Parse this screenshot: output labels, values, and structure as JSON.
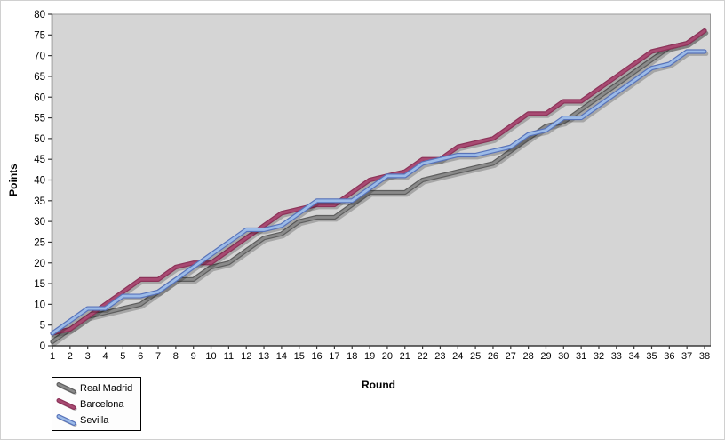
{
  "chart_data": {
    "type": "line",
    "title": "",
    "xlabel": "Round",
    "ylabel": "Points",
    "x": [
      1,
      2,
      3,
      4,
      5,
      6,
      7,
      8,
      9,
      10,
      11,
      12,
      13,
      14,
      15,
      16,
      17,
      18,
      19,
      20,
      21,
      22,
      23,
      24,
      25,
      26,
      27,
      28,
      29,
      30,
      31,
      32,
      33,
      34,
      35,
      36,
      37,
      38
    ],
    "ylim": [
      0,
      80
    ],
    "ytick_step": 5,
    "yticks": [
      0,
      5,
      10,
      15,
      20,
      25,
      30,
      35,
      40,
      45,
      50,
      55,
      60,
      65,
      70,
      75,
      80
    ],
    "grid": false,
    "plot_bg": "#d5d5d5",
    "plot_border": "#9a9a9a",
    "axis_color": "#3a3a3a",
    "legend_position": "bottom-left",
    "series": [
      {
        "name": "Real Madrid",
        "color": "#8a8a8a",
        "edge_color": "#5e5e5e",
        "values": [
          1,
          4,
          7,
          8,
          9,
          10,
          13,
          16,
          16,
          19,
          20,
          23,
          26,
          27,
          30,
          31,
          31,
          34,
          37,
          37,
          37,
          40,
          41,
          42,
          43,
          44,
          47,
          50,
          53,
          54,
          57,
          60,
          63,
          66,
          69,
          72,
          73,
          76
        ]
      },
      {
        "name": "Barcelona",
        "color": "#a84a72",
        "edge_color": "#8c3359",
        "values": [
          3,
          4,
          7,
          10,
          13,
          16,
          16,
          19,
          20,
          20,
          23,
          26,
          29,
          32,
          33,
          34,
          34,
          37,
          40,
          41,
          42,
          45,
          45,
          48,
          49,
          50,
          53,
          56,
          56,
          59,
          59,
          62,
          65,
          68,
          71,
          72,
          73,
          76
        ]
      },
      {
        "name": "Sevilla",
        "color": "#9cbbe8",
        "edge_color": "#5873ba",
        "values": [
          3,
          6,
          9,
          9,
          12,
          12,
          13,
          16,
          19,
          22,
          25,
          28,
          28,
          29,
          32,
          35,
          35,
          35,
          38,
          41,
          41,
          44,
          45,
          46,
          46,
          47,
          48,
          51,
          52,
          55,
          55,
          58,
          61,
          64,
          67,
          68,
          71,
          71
        ]
      }
    ]
  }
}
